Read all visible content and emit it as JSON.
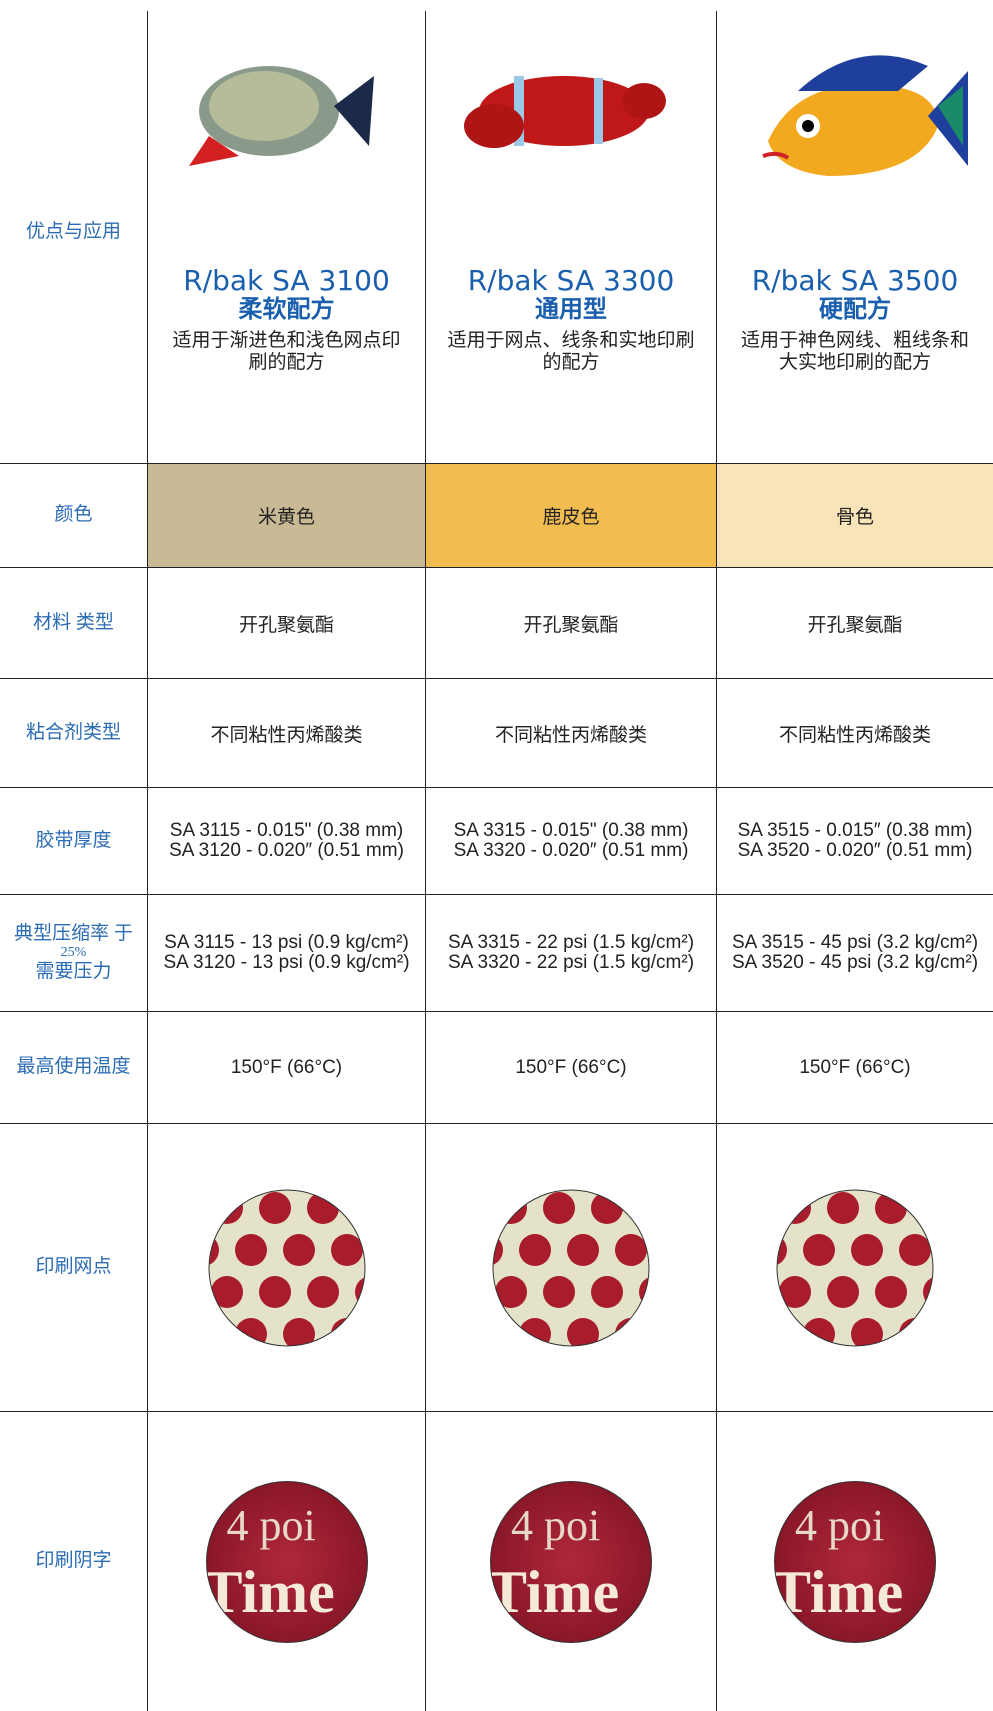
{
  "table": {
    "columns": [
      {
        "title": "R/bak SA 3100",
        "subtitle": "柔软配方",
        "description": "适用于渐进色和浅色网点印刷的配方"
      },
      {
        "title": "R/bak SA 3300",
        "subtitle": "通用型",
        "description": "适用于网点、线条和实地印刷的配方"
      },
      {
        "title": "R/bak SA 3500",
        "subtitle": "硬配方",
        "description": "适用于神色网线、粗线条和大实地印刷的配方"
      }
    ],
    "rows": [
      {
        "label": [
          "优点与应用"
        ]
      },
      {
        "label": [
          "颜色"
        ],
        "cells": [
          [
            "米黄色"
          ],
          [
            "鹿皮色"
          ],
          [
            "骨色"
          ]
        ]
      },
      {
        "label": [
          "材料 类型"
        ],
        "cells": [
          [
            "开孔聚氨酯"
          ],
          [
            "开孔聚氨酯"
          ],
          [
            "开孔聚氨酯"
          ]
        ]
      },
      {
        "label": [
          "粘合剂类型"
        ],
        "cells": [
          [
            "不同粘性丙烯酸类"
          ],
          [
            "不同粘性丙烯酸类"
          ],
          [
            "不同粘性丙烯酸类"
          ]
        ]
      },
      {
        "label": [
          "胶带厚度"
        ],
        "cells": [
          [
            "SA 3115 - 0.015\" (0.38 mm)",
            "SA 3120 - 0.020″ (0.51 mm)"
          ],
          [
            "SA 3315 - 0.015\" (0.38 mm)",
            "SA 3320 - 0.020″ (0.51 mm)"
          ],
          [
            "SA 3515 - 0.015″ (0.38 mm)",
            "SA 3520 - 0.020″ (0.51 mm)"
          ]
        ]
      },
      {
        "label": [
          "典型压缩率 于",
          "25%",
          "需要压力"
        ],
        "cells": [
          [
            "SA 3115 - 13 psi (0.9 kg/cm²)",
            "SA 3120 - 13 psi (0.9 kg/cm²)"
          ],
          [
            "SA 3315 - 22 psi (1.5 kg/cm²)",
            "SA 3320 - 22 psi (1.5 kg/cm²)"
          ],
          [
            "SA 3515 - 45 psi (3.2 kg/cm²)",
            "SA 3520 - 45 psi (3.2 kg/cm²)"
          ]
        ]
      },
      {
        "label": [
          "最高使用温度"
        ],
        "cells": [
          [
            "150°F (66°C)"
          ],
          [
            "150°F (66°C)"
          ],
          [
            "150°F (66°C)"
          ]
        ]
      },
      {
        "label": [
          "印刷网点"
        ]
      },
      {
        "label": [
          "印刷阴字"
        ],
        "sample_text": [
          "4 poi",
          "Time"
        ]
      }
    ]
  }
}
